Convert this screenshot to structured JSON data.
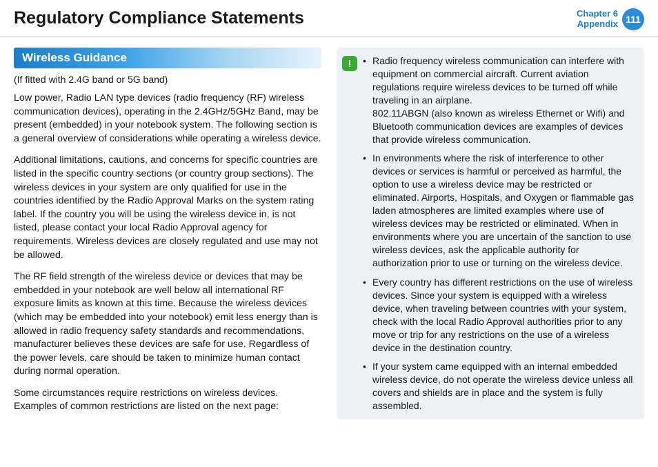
{
  "header": {
    "title": "Regulatory Compliance Statements",
    "chapter_line1": "Chapter 6",
    "chapter_line2": "Appendix",
    "page_number": "111"
  },
  "left": {
    "section_title": "Wireless Guidance",
    "subtitle": "(If fitted with 2.4G band or 5G band)",
    "paragraphs": [
      "Low power, Radio LAN type devices (radio frequency (RF) wireless communication devices), operating in the 2.4GHz/5GHz Band, may be present (embedded) in your notebook system. The following section is a general overview of considerations while operating a wireless device.",
      "Additional limitations, cautions, and concerns for specific countries are listed in the specific country sections (or country group sections). The wireless devices in your system are only qualified for use in the countries identified by the Radio Approval Marks on the system rating label. If the country you will be using the wireless device in, is not listed, please contact your local Radio Approval agency for requirements. Wireless devices are closely regulated and use may not be allowed.",
      "The RF field strength of the wireless device or devices that may be embedded in your notebook are well below all international RF exposure limits as known at this time. Because the wireless devices (which may be embedded into your notebook) emit less energy than is allowed in radio frequency safety standards and recommendations, manufacturer believes these devices are safe for use. Regardless of the power levels, care should be taken to minimize human contact during normal operation.",
      "Some circumstances require restrictions on wireless devices. Examples of common restrictions are listed on the next page:"
    ]
  },
  "notice": {
    "icon_label": "!",
    "items": [
      "Radio frequency wireless communication can interfere with equipment on commercial aircraft. Current aviation regulations require wireless devices to be turned off while traveling in an airplane.\n802.11ABGN (also known as wireless Ethernet or Wifi) and Bluetooth communication devices are examples of devices that provide wireless communication.",
      "In environments where the risk of interference to other devices or services is harmful or perceived as harmful, the option to use a wireless device may be restricted or eliminated. Airports, Hospitals, and Oxygen or flammable gas laden atmospheres are limited examples where use of wireless devices may be restricted or eliminated. When in environments where you are uncertain of the sanction to use wireless devices, ask the applicable authority for authorization prior to use or turning on the wireless device.",
      "Every country has different restrictions on the use of wireless devices. Since your system is equipped with a wireless device, when traveling between countries with your system, check with the local Radio Approval authorities prior to any move or trip for any restrictions on the use of a wireless device in the destination country.",
      "If your system came equipped with an internal embedded wireless device, do not operate the wireless device unless all covers and shields are in place and the system is fully assembled."
    ]
  },
  "colors": {
    "brand_blue": "#1e7fc8",
    "circle_blue": "#2a8cd6",
    "notice_bg": "#eef1f4",
    "notice_green": "#3aaa35"
  }
}
